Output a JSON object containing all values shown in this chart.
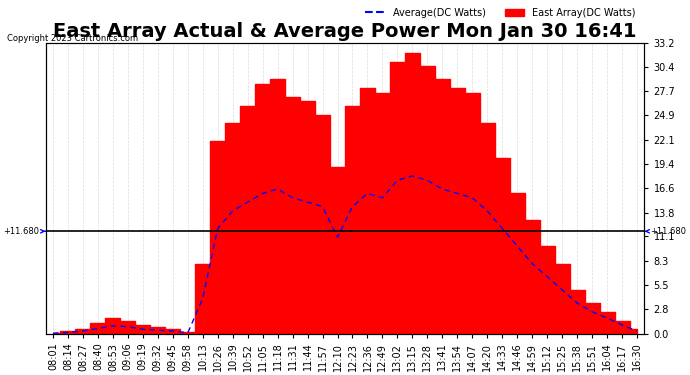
{
  "title": "East Array Actual & Average Power Mon Jan 30 16:41",
  "copyright": "Copyright 2023 Cartronics.com",
  "legend_average": "Average(DC Watts)",
  "legend_east": "East Array(DC Watts)",
  "hline_value": 11.68,
  "hline_label": "+11.680",
  "ymin": 0.0,
  "ymax": 33.2,
  "yticks": [
    0.0,
    2.8,
    5.5,
    8.3,
    11.1,
    13.8,
    16.6,
    19.4,
    22.1,
    24.9,
    27.7,
    30.4,
    33.2
  ],
  "background_color": "#ffffff",
  "fill_color": "#ff0000",
  "avg_line_color": "#0000ff",
  "hline_color": "#000000",
  "title_fontsize": 14,
  "tick_fontsize": 7,
  "xtick_labels": [
    "08:01",
    "08:14",
    "08:27",
    "08:40",
    "08:53",
    "09:06",
    "09:19",
    "09:32",
    "09:45",
    "09:58",
    "10:13",
    "10:26",
    "10:39",
    "10:52",
    "11:05",
    "11:18",
    "11:31",
    "11:44",
    "11:57",
    "12:10",
    "12:23",
    "12:36",
    "12:49",
    "13:02",
    "13:15",
    "13:28",
    "13:41",
    "13:54",
    "14:07",
    "14:20",
    "14:33",
    "14:46",
    "14:59",
    "15:12",
    "15:25",
    "15:38",
    "15:51",
    "16:04",
    "16:17",
    "16:30"
  ],
  "east_array_data": [
    0.1,
    0.3,
    0.5,
    1.2,
    1.8,
    1.5,
    1.0,
    0.8,
    0.5,
    0.2,
    8.0,
    22.0,
    24.0,
    26.0,
    28.5,
    29.0,
    27.0,
    26.5,
    25.0,
    19.0,
    26.0,
    28.0,
    27.5,
    31.0,
    32.0,
    30.5,
    29.0,
    28.0,
    27.5,
    24.0,
    20.0,
    16.0,
    13.0,
    10.0,
    8.0,
    5.0,
    3.5,
    2.5,
    1.5,
    0.5
  ],
  "avg_data": [
    0.05,
    0.15,
    0.3,
    0.6,
    0.9,
    0.8,
    0.5,
    0.4,
    0.3,
    0.1,
    4.0,
    12.0,
    14.0,
    15.0,
    16.0,
    16.5,
    15.5,
    15.0,
    14.5,
    11.0,
    14.5,
    16.0,
    15.5,
    17.5,
    18.0,
    17.5,
    16.5,
    16.0,
    15.5,
    14.0,
    12.0,
    10.0,
    8.0,
    6.5,
    5.0,
    3.5,
    2.5,
    1.8,
    1.0,
    0.3
  ]
}
